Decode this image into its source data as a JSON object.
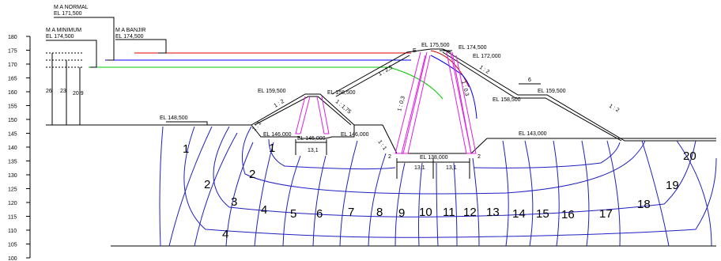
{
  "colors": {
    "normal_water": "#0000ff",
    "flood_water": "#e00000",
    "minimum_water": "#00c800",
    "flow_lines": "#2020c0",
    "filter": "#e020e0",
    "structure": "#000000"
  },
  "scale": {
    "ticks": [
      "180",
      "175",
      "170",
      "165",
      "160",
      "155",
      "150",
      "145",
      "140",
      "135",
      "130",
      "125",
      "120",
      "115",
      "110",
      "105",
      "100"
    ]
  },
  "water_levels": {
    "normal": {
      "label": "M A NORMAL",
      "elevation": "EL 171,500"
    },
    "minimum": {
      "label": "M A MINIMUM",
      "elevation": "EL 174,500"
    },
    "flood": {
      "label": "M A BANJIR",
      "elevation": "EL 174,500"
    }
  },
  "depths": {
    "d1": "26",
    "d2": "23",
    "d3": "20,9"
  },
  "elevations": {
    "crest": "EL 175,500",
    "crest_right": "EL 174,500",
    "crest_right2": "EL 172,000",
    "upstream_berm": "EL 159,500",
    "upstream_berm_right": "EL 158,500",
    "downstream_berm_left": "EL 158,500",
    "downstream_berm_right": "EL 159,500",
    "upstream_ground": "EL 148,500",
    "coffer_left": "EL 146,000",
    "coffer_mid": "EL 145,000",
    "coffer_right": "EL 146,000",
    "core_base": "EL 138,000",
    "downstream_ground": "EL 143,000"
  },
  "slopes": {
    "s1": "1 : 2",
    "s2": "1 : 1,75",
    "s3": "1 : 2,5",
    "s4": "1 : 0,3",
    "s5": "1 : 0,3",
    "s6": "1 : 2",
    "s7": "1 : 2",
    "s8": "1 : 1",
    "s9": "1 : 1"
  },
  "dims": {
    "coffer_width": "13,1",
    "core_left": "13,1",
    "core_right": "13,1",
    "filter_left": "2",
    "filter_right": "2",
    "berm_width": "6",
    "crest_marker": "E"
  },
  "flow_net": {
    "upper_numbers": [
      "1",
      "1",
      "2",
      "2",
      "3",
      "4",
      "4"
    ],
    "lower_numbers": [
      "5",
      "6",
      "7",
      "8",
      "9",
      "10",
      "11",
      "12",
      "13",
      "14",
      "15",
      "16",
      "17",
      "18",
      "19",
      "20"
    ]
  }
}
